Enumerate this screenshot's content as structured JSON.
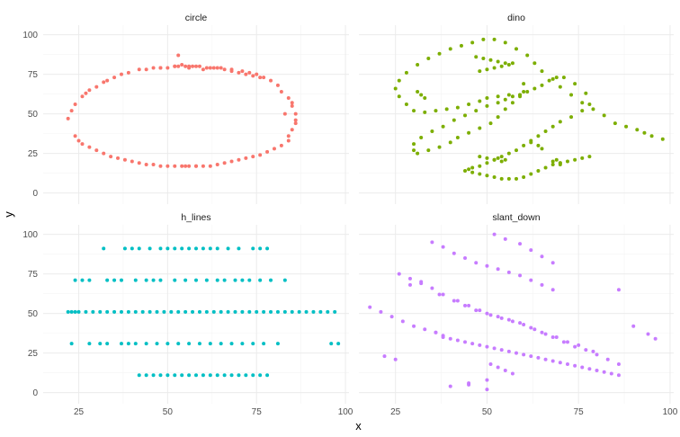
{
  "chart_data": {
    "type": "scatter",
    "xlabel": "x",
    "ylabel": "y",
    "xlim": [
      15,
      101
    ],
    "ylim": [
      -7,
      106
    ],
    "x_ticks": [
      25,
      50,
      75,
      100
    ],
    "y_ticks": [
      0,
      25,
      50,
      75,
      100
    ],
    "grid": true,
    "legend": "none",
    "colors": {
      "circle": "#f8766d",
      "dino": "#7cae00",
      "h_lines": "#00bfc4",
      "slant_down": "#c77cff"
    },
    "panels": [
      {
        "name": "circle",
        "x": [
          22,
          23,
          24,
          26,
          27,
          28,
          30,
          32,
          33,
          35,
          37,
          39,
          42,
          44,
          46,
          48,
          50,
          52,
          53,
          55,
          56,
          57,
          59,
          61,
          63,
          65,
          68,
          71,
          73,
          75,
          77,
          79,
          81,
          82,
          84,
          85,
          86,
          86,
          86,
          85,
          84,
          84,
          82,
          80,
          78,
          76,
          74,
          72,
          70,
          68,
          66,
          64,
          62,
          60,
          58,
          56,
          54,
          52,
          50,
          48,
          46,
          44,
          42,
          40,
          38,
          36,
          34,
          32,
          30,
          28,
          26,
          25,
          24,
          48,
          52,
          54,
          56,
          58,
          60,
          62,
          64,
          66,
          68,
          70,
          72,
          74,
          76,
          58,
          55,
          53,
          85,
          83
        ],
        "y": [
          47,
          52,
          56,
          61,
          63,
          65,
          67,
          70,
          71,
          73,
          75,
          76,
          78,
          78,
          79,
          79,
          79,
          80,
          80,
          80,
          80,
          80,
          80,
          79,
          79,
          79,
          78,
          77,
          76,
          75,
          73,
          71,
          68,
          64,
          60,
          55,
          50,
          46,
          44,
          40,
          36,
          33,
          30,
          28,
          26,
          24,
          23,
          22,
          21,
          20,
          19,
          18,
          17,
          17,
          17,
          17,
          17,
          17,
          17,
          17,
          18,
          18,
          19,
          20,
          21,
          22,
          23,
          25,
          27,
          29,
          31,
          33,
          36,
          79,
          80,
          81,
          79,
          80,
          78,
          79,
          79,
          78,
          77,
          76,
          75,
          74,
          73,
          17,
          17,
          87,
          57,
          50
        ]
      },
      {
        "name": "dino",
        "x": [
          95,
          98,
          93,
          91,
          88,
          85,
          82,
          79,
          76,
          73,
          70,
          68,
          65,
          63,
          61,
          58,
          55,
          52,
          49,
          46,
          43,
          40,
          37,
          34,
          31,
          28,
          26,
          25,
          26,
          28,
          30,
          33,
          36,
          39,
          42,
          45,
          48,
          50,
          53,
          56,
          59,
          60,
          60,
          59,
          57,
          55,
          53,
          51,
          48,
          45,
          42,
          40,
          37,
          34,
          31,
          30,
          30,
          32,
          35,
          38,
          41,
          44,
          47,
          50,
          53,
          55,
          57,
          59,
          61,
          63,
          65,
          67,
          69,
          71,
          74,
          77,
          78,
          76,
          73,
          70,
          68,
          66,
          64,
          62,
          60,
          58,
          56,
          54,
          52,
          50,
          48,
          46,
          45,
          44,
          46,
          48,
          50,
          52,
          54,
          56,
          58,
          60,
          62,
          64,
          66,
          68,
          70,
          72,
          74,
          76,
          78,
          47,
          49,
          51,
          53,
          55,
          57,
          48,
          50,
          52,
          54,
          56,
          53,
          55,
          54,
          52,
          50,
          48,
          69,
          68,
          70,
          70,
          33,
          32,
          31,
          62,
          64,
          65
        ],
        "y": [
          36,
          34,
          38,
          40,
          42,
          44,
          49,
          53,
          57,
          62,
          67,
          72,
          77,
          82,
          87,
          91,
          95,
          97,
          97,
          95,
          93,
          91,
          88,
          85,
          81,
          76,
          71,
          66,
          61,
          56,
          52,
          51,
          52,
          53,
          54,
          56,
          58,
          60,
          61,
          62,
          62,
          64,
          69,
          61,
          57,
          53,
          48,
          44,
          41,
          38,
          35,
          32,
          29,
          27,
          25,
          27,
          31,
          35,
          39,
          42,
          46,
          49,
          52,
          55,
          57,
          59,
          61,
          62,
          64,
          66,
          68,
          71,
          73,
          73,
          69,
          63,
          56,
          52,
          48,
          45,
          42,
          39,
          36,
          33,
          30,
          27,
          25,
          23,
          21,
          19,
          17,
          16,
          15,
          14,
          13,
          12,
          11,
          10,
          9,
          9,
          9,
          10,
          12,
          14,
          16,
          18,
          19,
          20,
          21,
          22,
          23,
          86,
          85,
          84,
          83,
          82,
          82,
          77,
          78,
          79,
          80,
          81,
          22,
          21,
          20,
          21,
          22,
          23,
          21,
          20,
          19,
          18,
          60,
          62,
          64,
          32,
          30,
          28
        ]
      },
      {
        "name": "h_lines",
        "x": [
          22,
          23,
          24,
          25,
          27,
          29,
          31,
          33,
          35,
          37,
          39,
          41,
          43,
          45,
          47,
          49,
          51,
          53,
          55,
          57,
          59,
          61,
          63,
          65,
          67,
          69,
          71,
          73,
          75,
          77,
          79,
          81,
          83,
          85,
          87,
          89,
          91,
          93,
          95,
          97,
          24,
          26,
          28,
          33,
          35,
          37,
          41,
          44,
          46,
          48,
          52,
          55,
          58,
          61,
          64,
          66,
          69,
          71,
          73,
          76,
          79,
          83,
          23,
          28,
          31,
          33,
          37,
          39,
          41,
          44,
          47,
          50,
          53,
          56,
          59,
          62,
          65,
          68,
          71,
          74,
          77,
          81,
          96,
          98,
          32,
          38,
          40,
          42,
          45,
          48,
          50,
          52,
          54,
          56,
          58,
          60,
          62,
          64,
          67,
          70,
          74,
          76,
          78,
          42,
          44,
          46,
          48,
          50,
          52,
          54,
          56,
          58,
          60,
          62,
          64,
          66,
          68,
          70,
          72,
          74,
          76,
          78
        ],
        "y": [
          51,
          51,
          51,
          51,
          51,
          51,
          51,
          51,
          51,
          51,
          51,
          51,
          51,
          51,
          51,
          51,
          51,
          51,
          51,
          51,
          51,
          51,
          51,
          51,
          51,
          51,
          51,
          51,
          51,
          51,
          51,
          51,
          51,
          51,
          51,
          51,
          51,
          51,
          51,
          51,
          71,
          71,
          71,
          71,
          71,
          71,
          71,
          71,
          71,
          71,
          71,
          71,
          71,
          71,
          71,
          71,
          71,
          71,
          71,
          71,
          71,
          71,
          31,
          31,
          31,
          31,
          31,
          31,
          31,
          31,
          31,
          31,
          31,
          31,
          31,
          31,
          31,
          31,
          31,
          31,
          31,
          31,
          31,
          31,
          91,
          91,
          91,
          91,
          91,
          91,
          91,
          91,
          91,
          91,
          91,
          91,
          91,
          91,
          91,
          91,
          91,
          91,
          91,
          11,
          11,
          11,
          11,
          11,
          11,
          11,
          11,
          11,
          11,
          11,
          11,
          11,
          11,
          11,
          11,
          11,
          11,
          11
        ]
      },
      {
        "name": "slant_down",
        "x": [
          18,
          21,
          24,
          27,
          30,
          33,
          36,
          38,
          40,
          42,
          44,
          46,
          48,
          50,
          52,
          54,
          56,
          58,
          60,
          62,
          64,
          66,
          68,
          70,
          72,
          74,
          76,
          78,
          80,
          82,
          84,
          86,
          90,
          94,
          96,
          26,
          29,
          32,
          35,
          38,
          41,
          44,
          47,
          50,
          53,
          56,
          59,
          62,
          65,
          68,
          71,
          74,
          77,
          80,
          83,
          86,
          29,
          32,
          37,
          42,
          45,
          48,
          51,
          54,
          57,
          60,
          63,
          66,
          69,
          72,
          75,
          79,
          86,
          35,
          38,
          41,
          44,
          47,
          50,
          53,
          56,
          59,
          62,
          65,
          68,
          22,
          25,
          36,
          38,
          45,
          50,
          52,
          55,
          59,
          62,
          65,
          68,
          51,
          53,
          55,
          57,
          40,
          45,
          50
        ],
        "y": [
          54,
          51,
          48,
          45,
          42,
          40,
          38,
          36,
          34,
          33,
          32,
          31,
          30,
          29,
          28,
          27,
          26,
          25,
          24,
          23,
          22,
          21,
          20,
          19,
          18,
          17,
          16,
          15,
          14,
          13,
          12,
          11,
          42,
          37,
          34,
          75,
          72,
          69,
          66,
          62,
          58,
          55,
          52,
          50,
          48,
          46,
          44,
          41,
          38,
          35,
          32,
          29,
          27,
          24,
          21,
          18,
          68,
          70,
          62,
          58,
          55,
          52,
          49,
          47,
          45,
          43,
          40,
          37,
          35,
          32,
          30,
          26,
          65,
          95,
          92,
          88,
          85,
          82,
          80,
          78,
          76,
          74,
          71,
          68,
          65,
          23,
          21,
          38,
          35,
          5,
          2,
          100,
          97,
          94,
          90,
          86,
          82,
          18,
          16,
          14,
          12,
          4,
          6,
          8
        ]
      }
    ]
  }
}
